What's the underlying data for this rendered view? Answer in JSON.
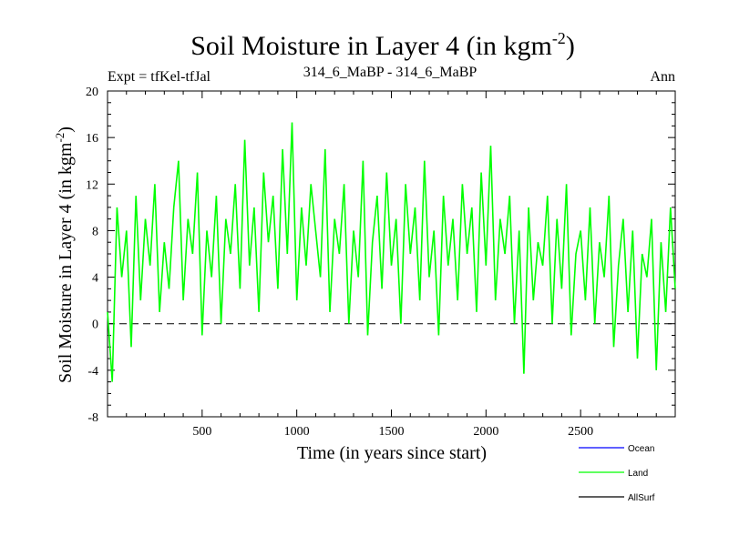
{
  "chart_data": {
    "type": "line",
    "title": "Soil Moisture in Layer 4 (in kgm",
    "title_sup": "-2",
    "title_close": ")",
    "subtitle_left": "Expt = tfKel-tfJal",
    "subtitle_center": "314_6_MaBP - 314_6_MaBP",
    "subtitle_right": "Ann",
    "xlabel": "Time (in years since start)",
    "ylabel": "Soil Moisture in Layer 4 (in kgm",
    "ylabel_sup": "-2",
    "ylabel_close": ")",
    "xlim": [
      0,
      3000
    ],
    "ylim": [
      -8,
      20
    ],
    "xticks": [
      500,
      1000,
      1500,
      2000,
      2500
    ],
    "yticks": [
      -8,
      -4,
      0,
      4,
      8,
      12,
      16,
      20
    ],
    "xtick_labels": [
      "500",
      "1000",
      "1500",
      "2000",
      "2500"
    ],
    "ytick_labels": [
      "-8",
      "-4",
      "0",
      "4",
      "8",
      "12",
      "16",
      "20"
    ],
    "reference_line": {
      "y": 0,
      "style": "dashed"
    },
    "legend_position": "bottom-right",
    "series": [
      {
        "name": "Ocean",
        "color": "#0000ff",
        "values": []
      },
      {
        "name": "Land",
        "color": "#00ff00",
        "x": [
          0,
          25,
          50,
          75,
          100,
          125,
          150,
          175,
          200,
          225,
          250,
          275,
          300,
          325,
          350,
          375,
          400,
          425,
          450,
          475,
          500,
          525,
          550,
          575,
          600,
          625,
          650,
          675,
          700,
          725,
          750,
          775,
          800,
          825,
          850,
          875,
          900,
          925,
          950,
          975,
          1000,
          1025,
          1050,
          1075,
          1100,
          1125,
          1150,
          1175,
          1200,
          1225,
          1250,
          1275,
          1300,
          1325,
          1350,
          1375,
          1400,
          1425,
          1450,
          1475,
          1500,
          1525,
          1550,
          1575,
          1600,
          1625,
          1650,
          1675,
          1700,
          1725,
          1750,
          1775,
          1800,
          1825,
          1850,
          1875,
          1900,
          1925,
          1950,
          1975,
          2000,
          2025,
          2050,
          2075,
          2100,
          2125,
          2150,
          2175,
          2200,
          2225,
          2250,
          2275,
          2300,
          2325,
          2350,
          2375,
          2400,
          2425,
          2450,
          2475,
          2500,
          2525,
          2550,
          2575,
          2600,
          2625,
          2650,
          2675,
          2700,
          2725,
          2750,
          2775,
          2800,
          2825,
          2850,
          2875,
          2900,
          2925,
          2950,
          2975,
          3000
        ],
        "values": [
          1,
          -5,
          10,
          4,
          8,
          -2,
          11,
          2,
          9,
          5,
          12,
          1,
          7,
          3,
          10,
          14,
          2,
          9,
          6,
          13,
          -1,
          8,
          4,
          11,
          0,
          9,
          6,
          12,
          3,
          15.8,
          5,
          10,
          1,
          13,
          7,
          11,
          3,
          15,
          6,
          17.3,
          2,
          10,
          5,
          12,
          8,
          4,
          15,
          1,
          9,
          6,
          12,
          0,
          8,
          4,
          14,
          -1,
          7,
          11,
          3,
          13,
          5,
          9,
          0,
          12,
          6,
          10,
          2,
          14,
          4,
          8,
          -1,
          11,
          5,
          9,
          2,
          12,
          6,
          10,
          1,
          13,
          5,
          15.3,
          2,
          9,
          6,
          11,
          0,
          8,
          -4.3,
          10,
          2,
          7,
          5,
          11,
          0,
          9,
          3,
          12,
          -1,
          6,
          8,
          2,
          10,
          0,
          7,
          4,
          11,
          -2,
          5,
          9,
          1,
          8,
          -3,
          6,
          4,
          9,
          -4,
          7,
          1,
          10,
          3
        ]
      },
      {
        "name": "AllSurf",
        "color": "#000000",
        "values": []
      }
    ]
  }
}
